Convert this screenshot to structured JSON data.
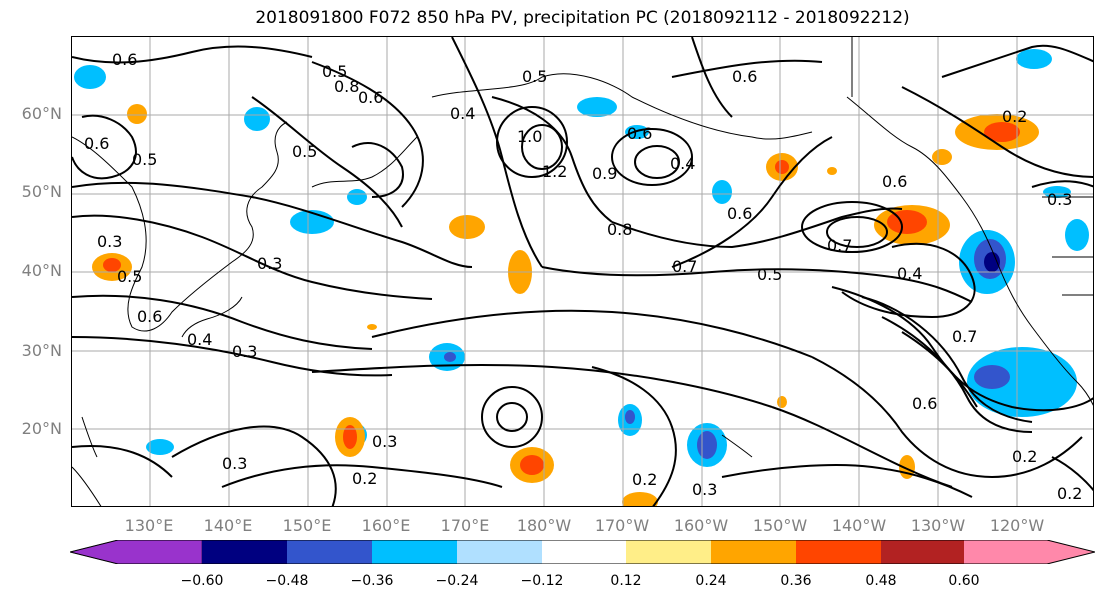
{
  "title": "2018091800 F072 850 hPa PV, precipitation PC (2018092112 - 2018092212)",
  "axes": {
    "lat_ticks": [
      "60°N",
      "50°N",
      "40°N",
      "30°N",
      "20°N"
    ],
    "lon_ticks": [
      "130°E",
      "140°E",
      "150°E",
      "160°E",
      "170°E",
      "180°W",
      "170°W",
      "160°W",
      "150°W",
      "140°W",
      "130°W",
      "120°W"
    ]
  },
  "contour_labels": [
    "0.6",
    "0.8",
    "0.6",
    "0.5",
    "0.4",
    "0.5",
    "0.6",
    "0.6",
    "0.6",
    "0.5",
    "0.3",
    "0.2",
    "0.3",
    "0.5",
    "1.0",
    "1.2",
    "0.9",
    "0.6",
    "0.4",
    "0.8",
    "0.7",
    "0.6",
    "0.7",
    "0.5",
    "0.4",
    "0.5",
    "0.3",
    "0.6",
    "0.4",
    "0.3",
    "0.7",
    "0.6",
    "0.3",
    "0.3",
    "0.2",
    "0.2",
    "0.3",
    "0.2",
    "0.2"
  ],
  "colorbar": {
    "labels": [
      "−0.60",
      "−0.48",
      "−0.36",
      "−0.24",
      "−0.12",
      "0.12",
      "0.24",
      "0.36",
      "0.48",
      "0.60"
    ],
    "colors": [
      "#9933cc",
      "#000080",
      "#3355cc",
      "#00bfff",
      "#b0e0ff",
      "#ffffff",
      "#ffee88",
      "#ffa500",
      "#ff4500",
      "#b22222",
      "#ff88aa"
    ]
  }
}
